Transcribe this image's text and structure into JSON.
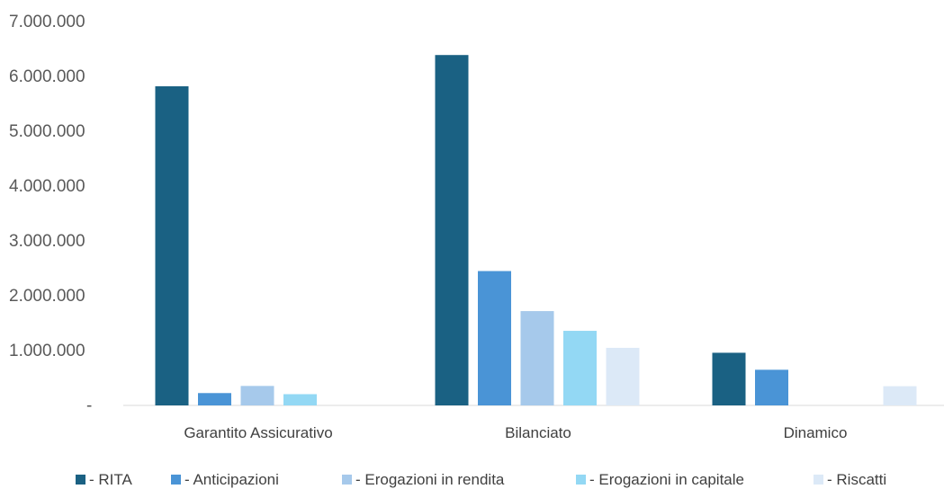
{
  "chart_data": {
    "type": "bar",
    "title": "",
    "xlabel": "",
    "ylabel": "",
    "categories": [
      "Garantito Assicurativo",
      "Bilanciato",
      "Dinamico"
    ],
    "series": [
      {
        "name": "- RITA",
        "color": "#1a6183",
        "values": [
          5820000,
          6390000,
          960000
        ]
      },
      {
        "name": "- Anticipazioni",
        "color": "#4a94d6",
        "values": [
          225000,
          2450000,
          650000
        ]
      },
      {
        "name": "- Erogazioni in rendita",
        "color": "#a6c9eb",
        "values": [
          355000,
          1720000,
          0
        ]
      },
      {
        "name": "- Erogazioni in capitale",
        "color": "#93d8f4",
        "values": [
          205000,
          1360000,
          0
        ]
      },
      {
        "name": "- Riscatti",
        "color": "#dce9f7",
        "values": [
          0,
          1050000,
          350000
        ]
      }
    ],
    "ylim": [
      0,
      7000000
    ],
    "yticks": [
      0,
      1000000,
      2000000,
      3000000,
      4000000,
      5000000,
      6000000,
      7000000
    ],
    "ytick_labels": [
      "-",
      "1.000.000",
      "2.000.000",
      "3.000.000",
      "4.000.000",
      "5.000.000",
      "6.000.000",
      "7.000.000"
    ],
    "grid": false,
    "legend_position": "bottom"
  }
}
